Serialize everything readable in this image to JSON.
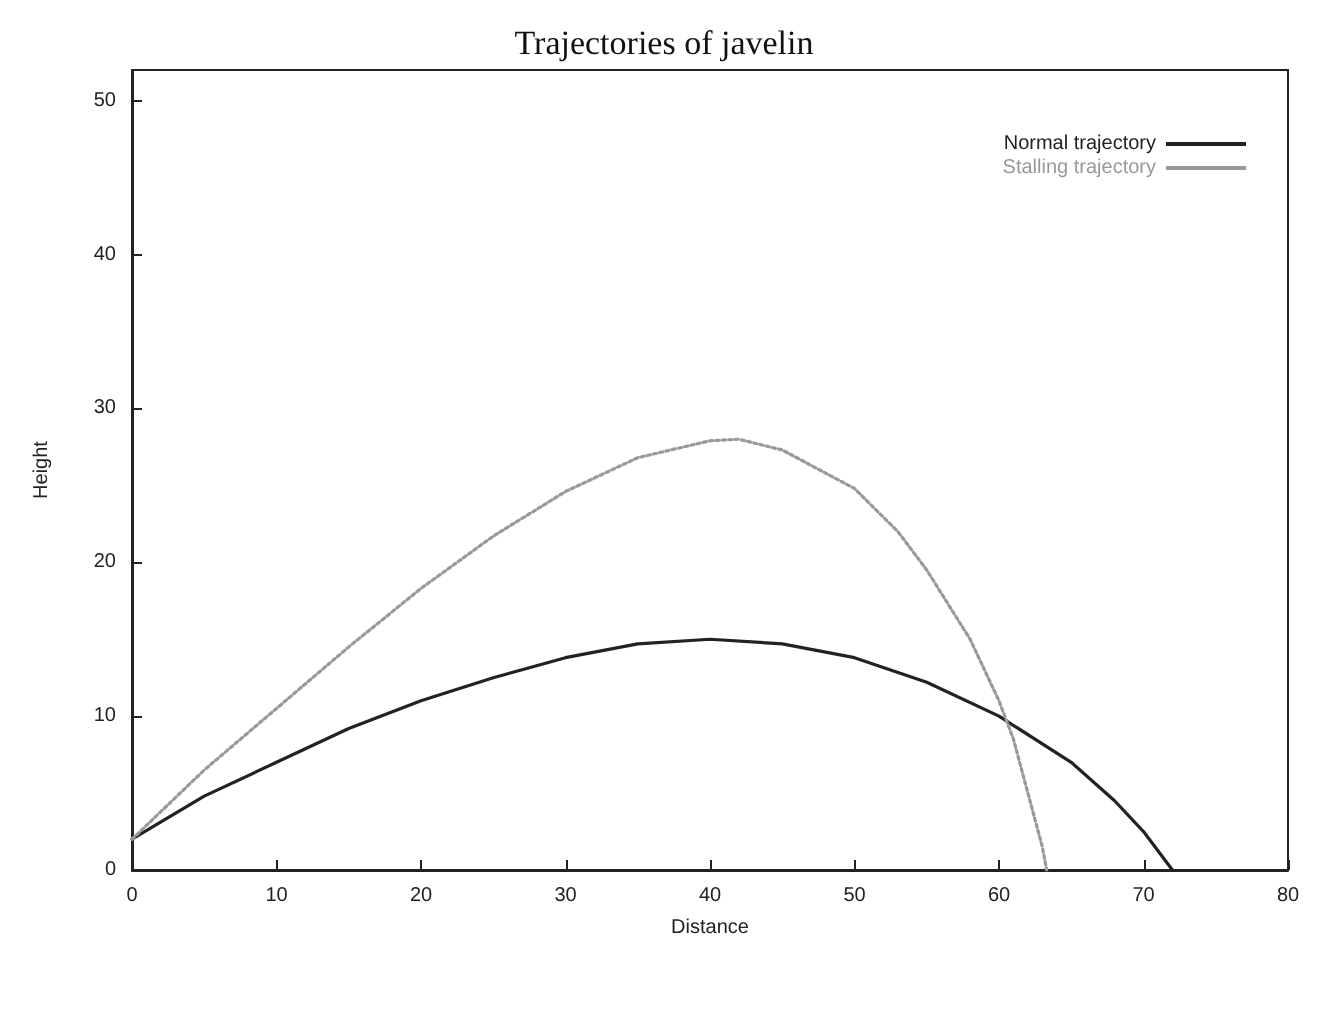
{
  "chart_data": {
    "type": "line",
    "title": "Trajectories of javelin",
    "xlabel": "Distance",
    "ylabel": "Height",
    "xlim": [
      0,
      80
    ],
    "xticks": [
      0,
      10,
      20,
      30,
      40,
      50,
      60,
      70,
      80
    ],
    "ylim": [
      0,
      52
    ],
    "yticks": [
      0,
      10,
      20,
      30,
      40,
      50
    ],
    "grid": false,
    "legend": "top right",
    "marker": "none",
    "series": [
      {
        "name": "Normal trajectory",
        "color": "#222222",
        "line_style": "solid",
        "x": [
          0,
          5,
          10,
          15,
          20,
          25,
          30,
          35,
          40,
          45,
          50,
          55,
          60,
          65,
          68,
          70,
          72
        ],
        "values": [
          2,
          4.8,
          7,
          9.2,
          11,
          12.5,
          13.8,
          14.7,
          15,
          14.7,
          13.8,
          12.2,
          10,
          7,
          4.5,
          2.5,
          0
        ]
      },
      {
        "name": "Stalling trajectory",
        "color": "#999999",
        "line_style": "dotted",
        "x": [
          0,
          5,
          10,
          15,
          20,
          25,
          30,
          35,
          40,
          42,
          45,
          50,
          53,
          55,
          58,
          60,
          61,
          62,
          63,
          63.3
        ],
        "values": [
          2,
          6.5,
          10.5,
          14.5,
          18.3,
          21.7,
          24.6,
          26.8,
          27.9,
          28,
          27.3,
          24.8,
          22,
          19.5,
          15,
          11,
          8.5,
          5,
          1.5,
          0
        ]
      }
    ]
  }
}
